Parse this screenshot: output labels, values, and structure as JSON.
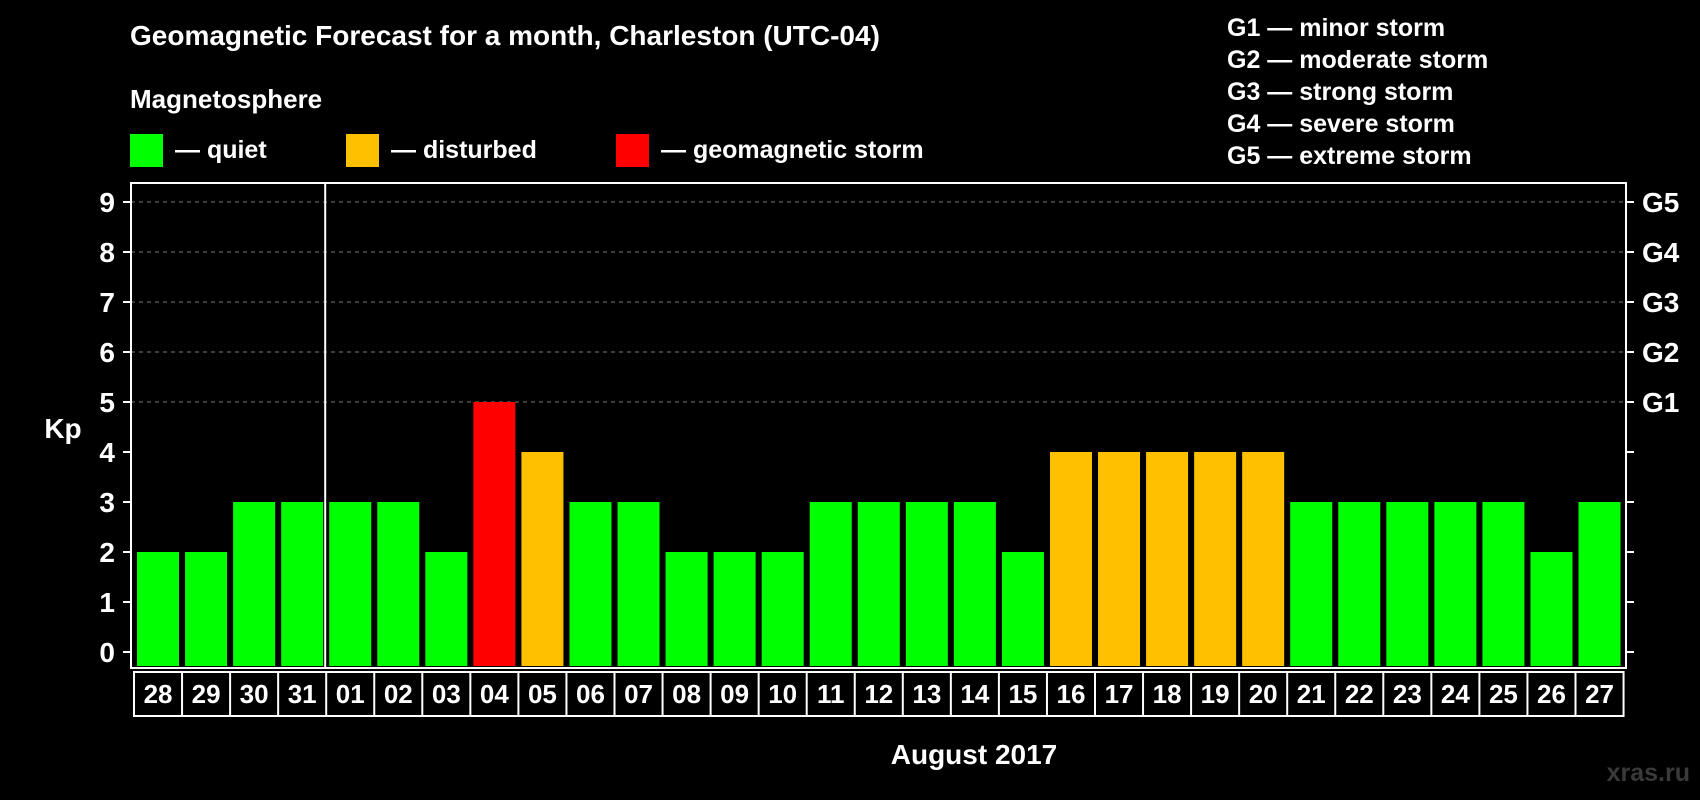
{
  "header": {
    "title": "Geomagnetic Forecast for a month, Charleston (UTC-04)",
    "subtitle": "Magnetosphere"
  },
  "legend": {
    "quiet": {
      "label": "— quiet",
      "color": "#00ff00"
    },
    "disturbed": {
      "label": "— disturbed",
      "color": "#ffc000"
    },
    "storm": {
      "label": "— geomagnetic storm",
      "color": "#ff0000"
    }
  },
  "storm_levels": [
    "G1 — minor storm",
    "G2 — moderate storm",
    "G3 — strong storm",
    "G4 — severe storm",
    "G5 — extreme storm"
  ],
  "watermark": "xras.ru",
  "chart_data": {
    "type": "bar",
    "ylabel": "Kp",
    "xlabel": "August 2017",
    "ylim": [
      0,
      9
    ],
    "yticks": [
      0,
      1,
      2,
      3,
      4,
      5,
      6,
      7,
      8,
      9
    ],
    "right_axis_labels": [
      {
        "kp": 5,
        "label": "G1"
      },
      {
        "kp": 6,
        "label": "G2"
      },
      {
        "kp": 7,
        "label": "G3"
      },
      {
        "kp": 8,
        "label": "G4"
      },
      {
        "kp": 9,
        "label": "G5"
      }
    ],
    "grid": true,
    "month_divider_after_category": "31",
    "categories": [
      "28",
      "29",
      "30",
      "31",
      "01",
      "02",
      "03",
      "04",
      "05",
      "06",
      "07",
      "08",
      "09",
      "10",
      "11",
      "12",
      "13",
      "14",
      "15",
      "16",
      "17",
      "18",
      "19",
      "20",
      "21",
      "22",
      "23",
      "24",
      "25",
      "26",
      "27"
    ],
    "values": [
      2,
      2,
      3,
      3,
      3,
      3,
      2,
      5,
      4,
      3,
      3,
      2,
      2,
      2,
      3,
      3,
      3,
      3,
      2,
      4,
      4,
      4,
      4,
      4,
      3,
      3,
      3,
      3,
      3,
      2,
      3
    ],
    "colors": {
      "quiet": "#00ff00",
      "disturbed": "#ffc000",
      "storm": "#ff0000"
    }
  }
}
